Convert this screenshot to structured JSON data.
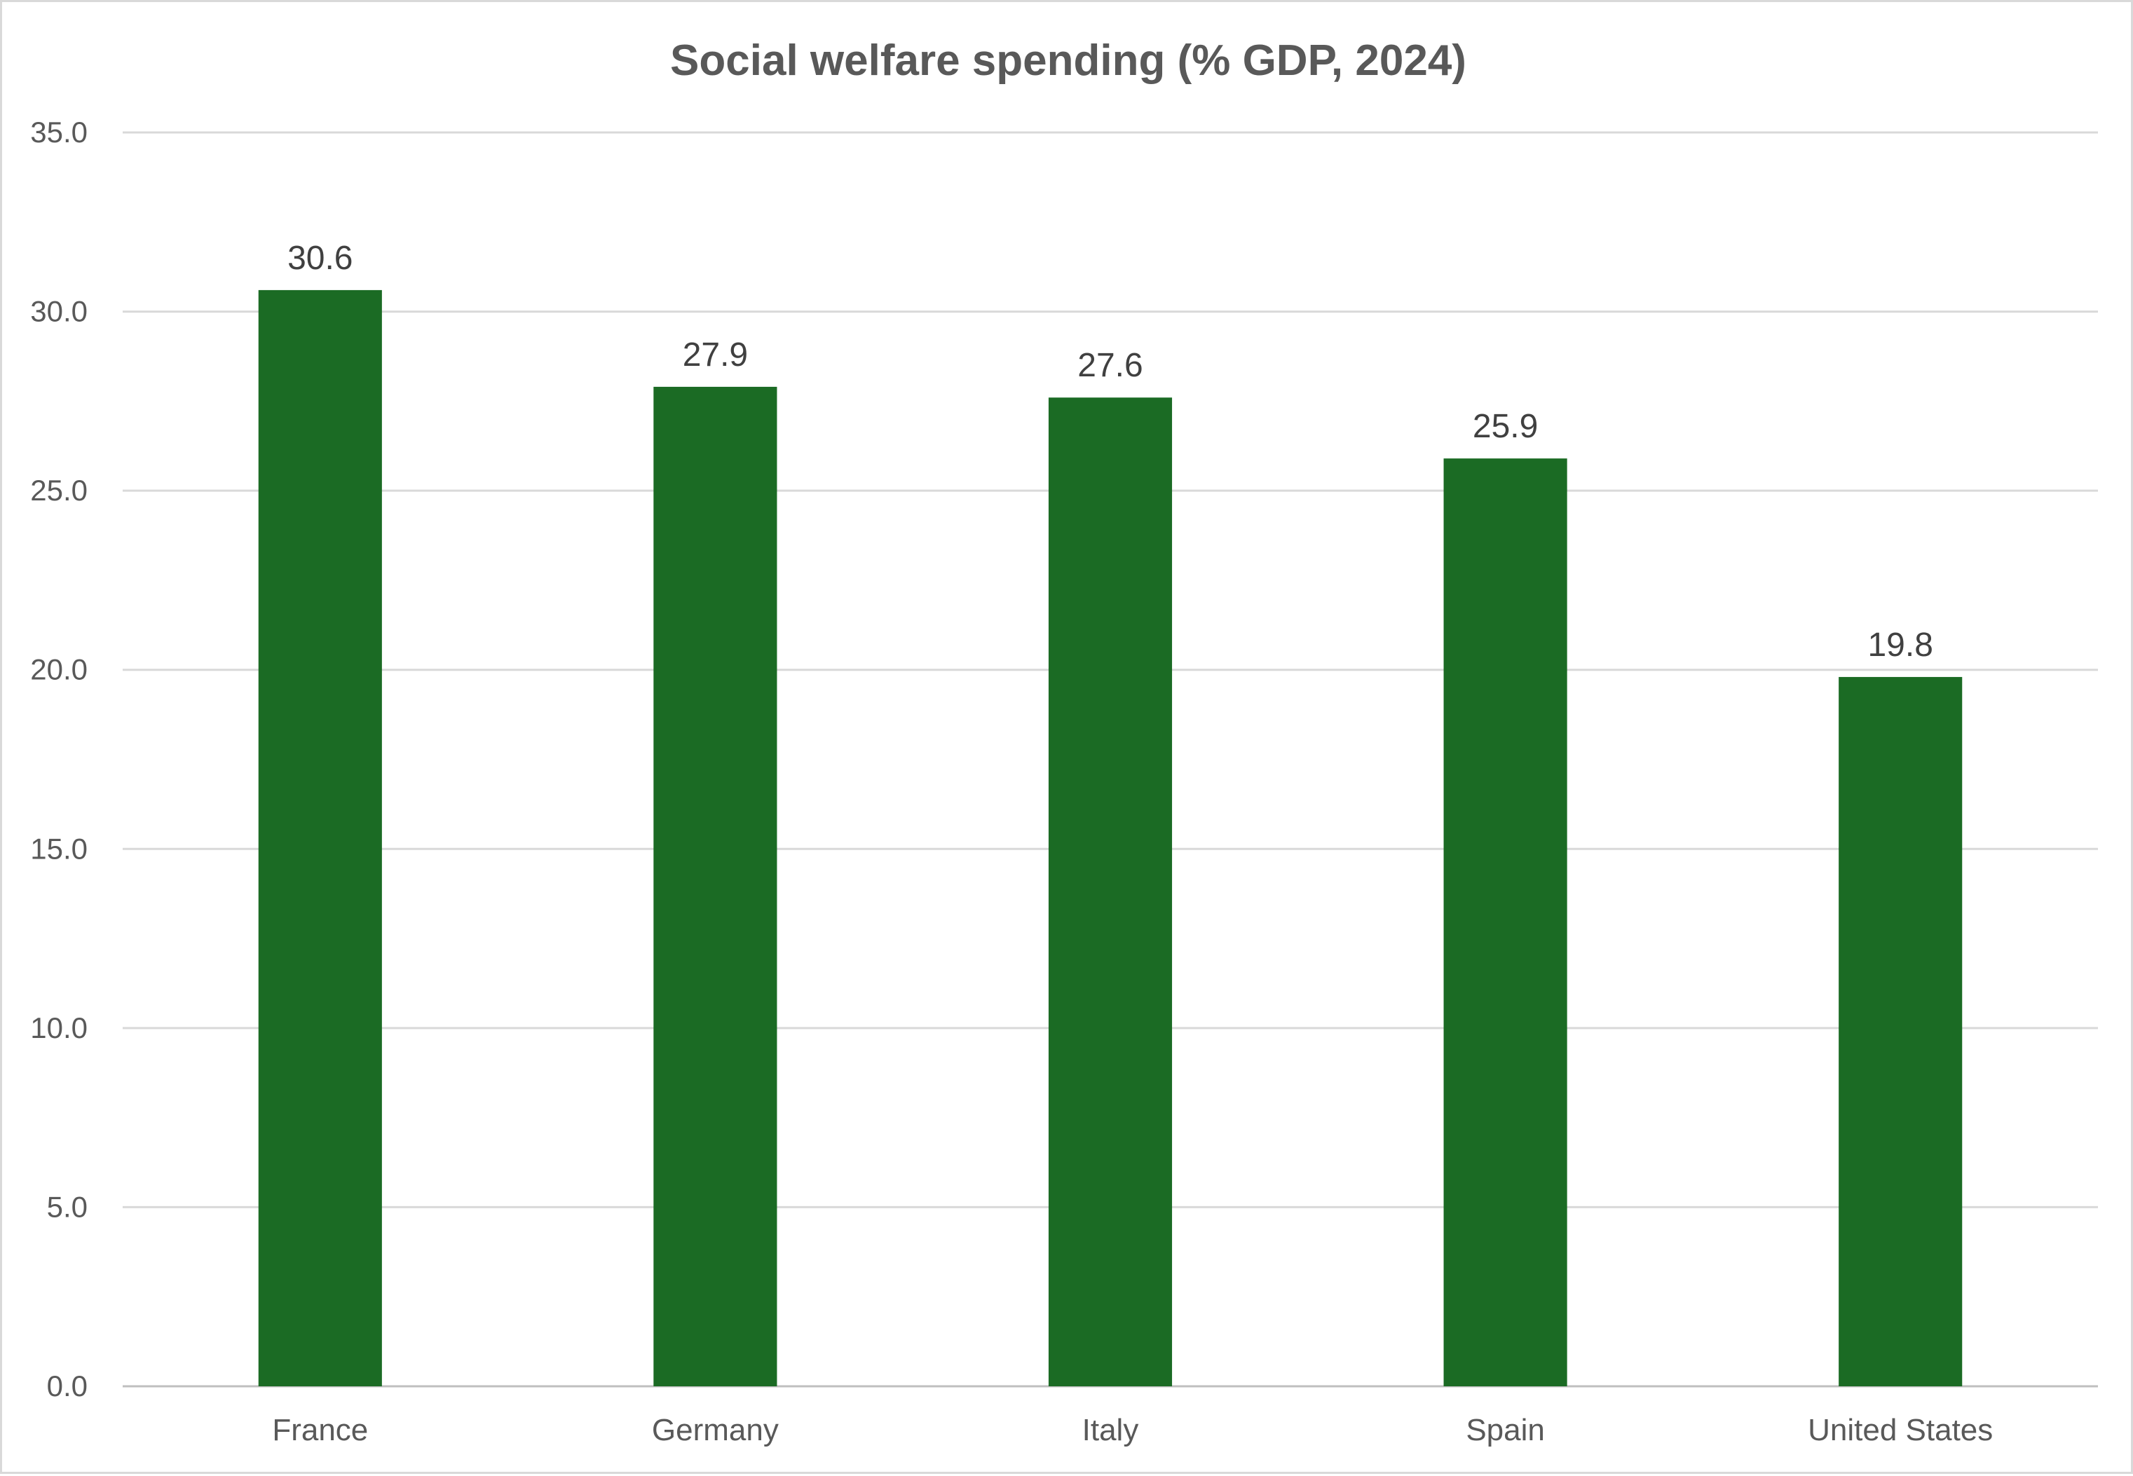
{
  "colors": {
    "bar": "#1b6b24",
    "gridline": "#d9d9d9",
    "text": "#595959",
    "value_label": "#404040",
    "background": "#ffffff"
  },
  "chart_data": {
    "type": "bar",
    "title": "Social welfare spending (% GDP, 2024)",
    "xlabel": "",
    "ylabel": "",
    "categories": [
      "France",
      "Germany",
      "Italy",
      "Spain",
      "United States"
    ],
    "values": [
      30.6,
      27.9,
      27.6,
      25.9,
      19.8
    ],
    "value_labels": [
      "30.6",
      "27.9",
      "27.6",
      "25.9",
      "19.8"
    ],
    "ylim": [
      0,
      35
    ],
    "y_ticks": [
      0,
      5,
      10,
      15,
      20,
      25,
      30,
      35
    ],
    "y_tick_labels": [
      "0.0",
      "5.0",
      "10.0",
      "15.0",
      "20.0",
      "25.0",
      "30.0",
      "35.0"
    ],
    "grid": true,
    "legend": "none",
    "data_labels": "outside-end"
  }
}
